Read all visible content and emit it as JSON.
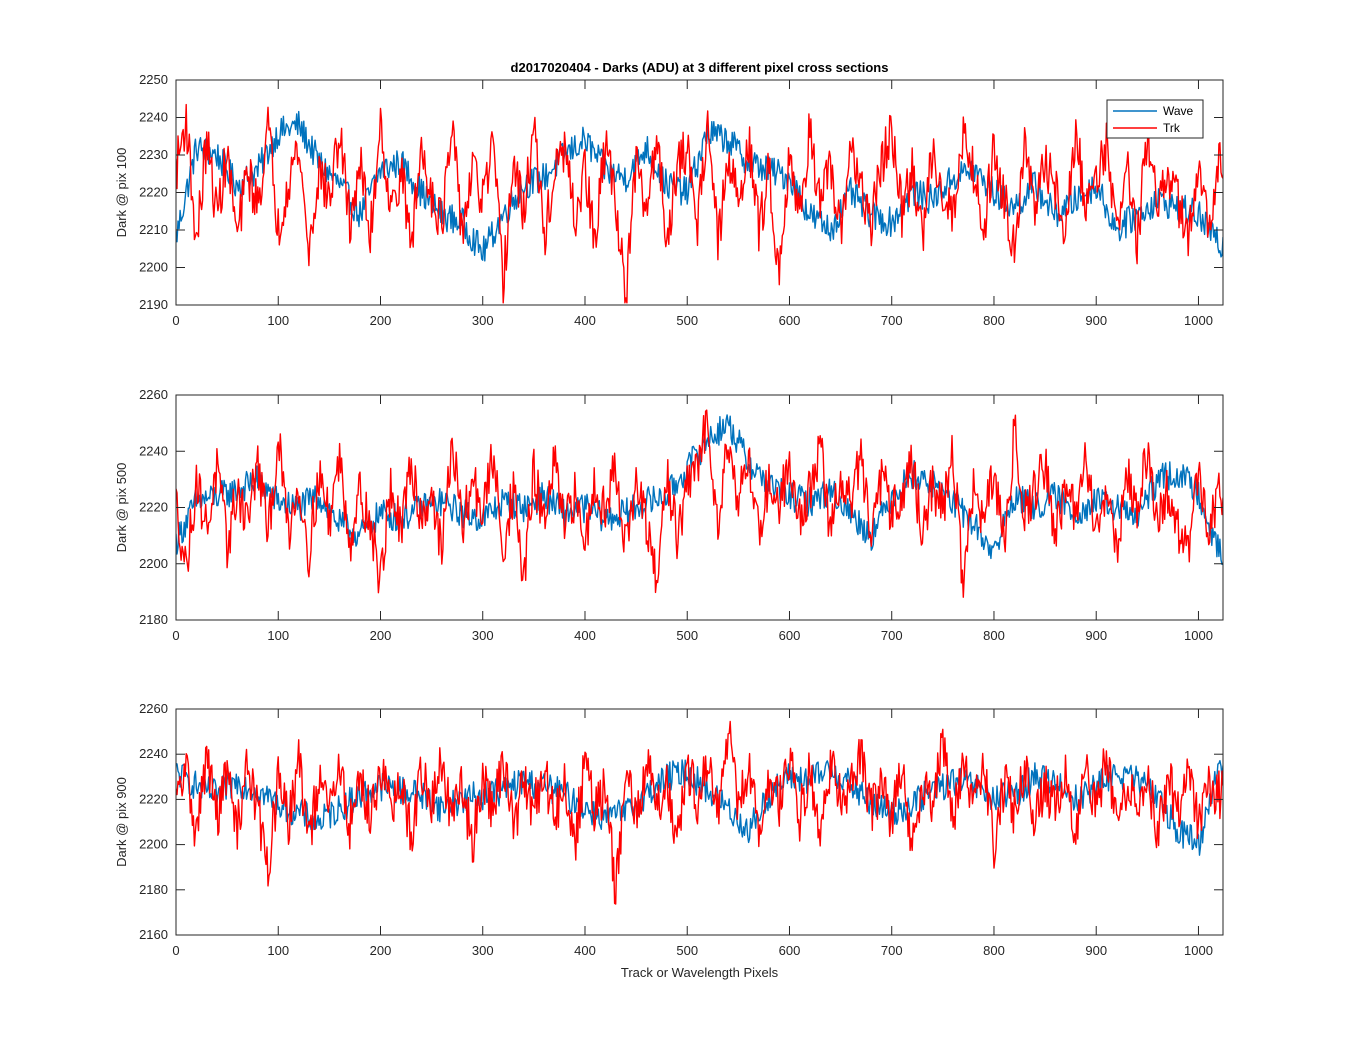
{
  "chart_data": [
    {
      "type": "line",
      "title": "d2017020404 - Darks (ADU) at 3 different pixel cross sections",
      "xlabel": "",
      "ylabel": "Dark @ pix 100",
      "xlim": [
        0,
        1024
      ],
      "ylim": [
        2190,
        2250
      ],
      "xticks": [
        0,
        100,
        200,
        300,
        400,
        500,
        600,
        700,
        800,
        900,
        1000
      ],
      "yticks": [
        2190,
        2200,
        2210,
        2220,
        2230,
        2240,
        2250
      ],
      "grid": false,
      "legend": {
        "placement": "top-right",
        "entries": [
          "Wave",
          "Trk"
        ]
      },
      "series": [
        {
          "name": "Wave",
          "color": "#0072bd",
          "x": [
            0,
            20,
            40,
            60,
            80,
            100,
            120,
            140,
            160,
            180,
            200,
            220,
            240,
            260,
            280,
            300,
            320,
            340,
            360,
            380,
            400,
            420,
            440,
            460,
            480,
            500,
            520,
            540,
            560,
            580,
            600,
            620,
            640,
            660,
            680,
            700,
            720,
            740,
            760,
            780,
            800,
            820,
            840,
            860,
            880,
            900,
            920,
            940,
            960,
            980,
            1000,
            1020
          ],
          "y": [
            2208,
            2232,
            2230,
            2222,
            2226,
            2236,
            2238,
            2228,
            2222,
            2214,
            2226,
            2228,
            2220,
            2214,
            2212,
            2204,
            2214,
            2222,
            2224,
            2230,
            2234,
            2226,
            2224,
            2232,
            2222,
            2220,
            2236,
            2234,
            2228,
            2226,
            2224,
            2214,
            2210,
            2220,
            2214,
            2212,
            2220,
            2218,
            2224,
            2226,
            2220,
            2216,
            2222,
            2214,
            2218,
            2222,
            2210,
            2214,
            2218,
            2216,
            2214,
            2206
          ]
        },
        {
          "name": "Trk",
          "color": "#ff0000",
          "x": [
            0,
            10,
            20,
            30,
            40,
            50,
            60,
            70,
            80,
            90,
            100,
            110,
            120,
            130,
            140,
            150,
            160,
            170,
            180,
            190,
            200,
            210,
            220,
            230,
            240,
            250,
            260,
            270,
            280,
            290,
            300,
            310,
            320,
            330,
            340,
            350,
            360,
            370,
            380,
            390,
            400,
            410,
            420,
            430,
            440,
            450,
            460,
            470,
            480,
            490,
            500,
            510,
            520,
            530,
            540,
            550,
            560,
            570,
            580,
            590,
            600,
            610,
            620,
            630,
            640,
            650,
            660,
            670,
            680,
            690,
            700,
            710,
            720,
            730,
            740,
            750,
            760,
            770,
            780,
            790,
            800,
            810,
            820,
            830,
            840,
            850,
            860,
            870,
            880,
            890,
            900,
            910,
            920,
            930,
            940,
            950,
            960,
            970,
            980,
            990,
            1000,
            1010,
            1020
          ],
          "y": [
            2226,
            2240,
            2206,
            2234,
            2214,
            2230,
            2208,
            2226,
            2216,
            2238,
            2210,
            2224,
            2232,
            2204,
            2226,
            2218,
            2236,
            2212,
            2228,
            2208,
            2240,
            2214,
            2226,
            2206,
            2232,
            2220,
            2212,
            2236,
            2210,
            2226,
            2218,
            2232,
            2196,
            2228,
            2214,
            2238,
            2208,
            2224,
            2232,
            2212,
            2226,
            2206,
            2234,
            2218,
            2192,
            2228,
            2214,
            2236,
            2208,
            2226,
            2232,
            2212,
            2240,
            2206,
            2228,
            2218,
            2234,
            2210,
            2226,
            2198,
            2232,
            2212,
            2238,
            2216,
            2226,
            2208,
            2234,
            2220,
            2212,
            2228,
            2236,
            2214,
            2226,
            2208,
            2232,
            2220,
            2214,
            2236,
            2226,
            2210,
            2232,
            2218,
            2206,
            2234,
            2214,
            2228,
            2222,
            2208,
            2236,
            2216,
            2226,
            2232,
            2210,
            2228,
            2206,
            2236,
            2214,
            2226,
            2218,
            2208,
            2224,
            2212,
            2230
          ]
        }
      ]
    },
    {
      "type": "line",
      "title": "",
      "xlabel": "",
      "ylabel": "Dark @ pix 500",
      "xlim": [
        0,
        1024
      ],
      "ylim": [
        2180,
        2260
      ],
      "xticks": [
        0,
        100,
        200,
        300,
        400,
        500,
        600,
        700,
        800,
        900,
        1000
      ],
      "yticks": [
        2180,
        2200,
        2220,
        2240,
        2260
      ],
      "grid": false,
      "series": [
        {
          "name": "Wave",
          "color": "#0072bd",
          "x": [
            0,
            20,
            40,
            60,
            80,
            100,
            120,
            140,
            160,
            180,
            200,
            220,
            240,
            260,
            280,
            300,
            320,
            340,
            360,
            380,
            400,
            420,
            440,
            460,
            480,
            500,
            520,
            540,
            560,
            580,
            600,
            620,
            640,
            660,
            680,
            700,
            720,
            740,
            760,
            780,
            800,
            820,
            840,
            860,
            880,
            900,
            920,
            940,
            960,
            980,
            1000,
            1020
          ],
          "y": [
            2208,
            2222,
            2224,
            2226,
            2230,
            2222,
            2220,
            2224,
            2214,
            2210,
            2218,
            2216,
            2220,
            2222,
            2218,
            2216,
            2222,
            2220,
            2224,
            2218,
            2220,
            2216,
            2218,
            2222,
            2224,
            2234,
            2244,
            2250,
            2236,
            2228,
            2224,
            2222,
            2226,
            2218,
            2210,
            2224,
            2232,
            2228,
            2222,
            2214,
            2204,
            2224,
            2220,
            2224,
            2218,
            2222,
            2220,
            2216,
            2230,
            2232,
            2226,
            2204
          ]
        },
        {
          "name": "Trk",
          "color": "#ff0000",
          "x": [
            0,
            10,
            20,
            30,
            40,
            50,
            60,
            70,
            80,
            90,
            100,
            110,
            120,
            130,
            140,
            150,
            160,
            170,
            180,
            190,
            200,
            210,
            220,
            230,
            240,
            250,
            260,
            270,
            280,
            290,
            300,
            310,
            320,
            330,
            340,
            350,
            360,
            370,
            380,
            390,
            400,
            410,
            420,
            430,
            440,
            450,
            460,
            470,
            480,
            490,
            500,
            510,
            520,
            530,
            540,
            550,
            560,
            570,
            580,
            590,
            600,
            610,
            620,
            630,
            640,
            650,
            660,
            670,
            680,
            690,
            700,
            710,
            720,
            730,
            740,
            750,
            760,
            770,
            780,
            790,
            800,
            810,
            820,
            830,
            840,
            850,
            860,
            870,
            880,
            890,
            900,
            910,
            920,
            930,
            940,
            950,
            960,
            970,
            980,
            990,
            1000,
            1010,
            1020
          ],
          "y": [
            2222,
            2198,
            2230,
            2212,
            2234,
            2206,
            2226,
            2216,
            2236,
            2210,
            2244,
            2212,
            2228,
            2204,
            2232,
            2216,
            2238,
            2208,
            2226,
            2214,
            2194,
            2228,
            2210,
            2236,
            2216,
            2226,
            2204,
            2244,
            2212,
            2230,
            2218,
            2238,
            2206,
            2226,
            2194,
            2232,
            2214,
            2236,
            2212,
            2224,
            2208,
            2230,
            2218,
            2236,
            2206,
            2228,
            2214,
            2192,
            2232,
            2210,
            2226,
            2236,
            2250,
            2216,
            2244,
            2224,
            2236,
            2212,
            2230,
            2220,
            2238,
            2216,
            2226,
            2242,
            2212,
            2230,
            2222,
            2240,
            2206,
            2232,
            2218,
            2226,
            2236,
            2210,
            2228,
            2220,
            2240,
            2192,
            2228,
            2214,
            2232,
            2206,
            2248,
            2218,
            2226,
            2236,
            2210,
            2228,
            2216,
            2238,
            2212,
            2226,
            2206,
            2232,
            2218,
            2240,
            2214,
            2226,
            2212,
            2206,
            2230,
            2214,
            2226
          ]
        }
      ]
    },
    {
      "type": "line",
      "title": "",
      "xlabel": "Track or Wavelength Pixels",
      "ylabel": "Dark @ pix 900",
      "xlim": [
        0,
        1024
      ],
      "ylim": [
        2160,
        2260
      ],
      "xticks": [
        0,
        100,
        200,
        300,
        400,
        500,
        600,
        700,
        800,
        900,
        1000
      ],
      "yticks": [
        2160,
        2180,
        2200,
        2220,
        2240,
        2260
      ],
      "grid": false,
      "series": [
        {
          "name": "Wave",
          "color": "#0072bd",
          "x": [
            0,
            20,
            40,
            60,
            80,
            100,
            120,
            140,
            160,
            180,
            200,
            220,
            240,
            260,
            280,
            300,
            320,
            340,
            360,
            380,
            400,
            420,
            440,
            460,
            480,
            500,
            520,
            540,
            560,
            580,
            600,
            620,
            640,
            660,
            680,
            700,
            720,
            740,
            760,
            780,
            800,
            820,
            840,
            860,
            880,
            900,
            920,
            940,
            960,
            980,
            1000,
            1020
          ],
          "y": [
            2232,
            2226,
            2222,
            2228,
            2224,
            2218,
            2214,
            2210,
            2216,
            2222,
            2226,
            2224,
            2222,
            2216,
            2220,
            2222,
            2224,
            2228,
            2226,
            2222,
            2216,
            2212,
            2214,
            2222,
            2230,
            2232,
            2224,
            2216,
            2206,
            2222,
            2230,
            2228,
            2234,
            2226,
            2218,
            2214,
            2218,
            2224,
            2228,
            2226,
            2220,
            2222,
            2230,
            2228,
            2220,
            2226,
            2232,
            2228,
            2222,
            2206,
            2200,
            2236
          ]
        },
        {
          "name": "Trk",
          "color": "#ff0000",
          "x": [
            0,
            10,
            20,
            30,
            40,
            50,
            60,
            70,
            80,
            90,
            100,
            110,
            120,
            130,
            140,
            150,
            160,
            170,
            180,
            190,
            200,
            210,
            220,
            230,
            240,
            250,
            260,
            270,
            280,
            290,
            300,
            310,
            320,
            330,
            340,
            350,
            360,
            370,
            380,
            390,
            400,
            410,
            420,
            430,
            440,
            450,
            460,
            470,
            480,
            490,
            500,
            510,
            520,
            530,
            540,
            550,
            560,
            570,
            580,
            590,
            600,
            610,
            620,
            630,
            640,
            650,
            660,
            670,
            680,
            690,
            700,
            710,
            720,
            730,
            740,
            750,
            760,
            770,
            780,
            790,
            800,
            810,
            820,
            830,
            840,
            850,
            860,
            870,
            880,
            890,
            900,
            910,
            920,
            930,
            940,
            950,
            960,
            970,
            980,
            990,
            1000,
            1010,
            1020
          ],
          "y": [
            2218,
            2234,
            2204,
            2240,
            2212,
            2232,
            2206,
            2238,
            2214,
            2190,
            2228,
            2210,
            2236,
            2204,
            2226,
            2216,
            2234,
            2208,
            2230,
            2212,
            2236,
            2214,
            2226,
            2204,
            2232,
            2218,
            2236,
            2210,
            2226,
            2200,
            2232,
            2214,
            2238,
            2208,
            2226,
            2216,
            2234,
            2210,
            2228,
            2200,
            2236,
            2214,
            2226,
            2178,
            2232,
            2210,
            2238,
            2216,
            2228,
            2204,
            2234,
            2220,
            2238,
            2212,
            2252,
            2216,
            2234,
            2206,
            2228,
            2218,
            2240,
            2212,
            2232,
            2208,
            2236,
            2220,
            2228,
            2242,
            2214,
            2226,
            2210,
            2238,
            2196,
            2230,
            2218,
            2248,
            2212,
            2232,
            2220,
            2238,
            2198,
            2228,
            2214,
            2236,
            2210,
            2226,
            2216,
            2234,
            2204,
            2232,
            2216,
            2238,
            2212,
            2226,
            2218,
            2234,
            2204,
            2230,
            2214,
            2238,
            2206,
            2228,
            2222
          ]
        }
      ]
    }
  ]
}
